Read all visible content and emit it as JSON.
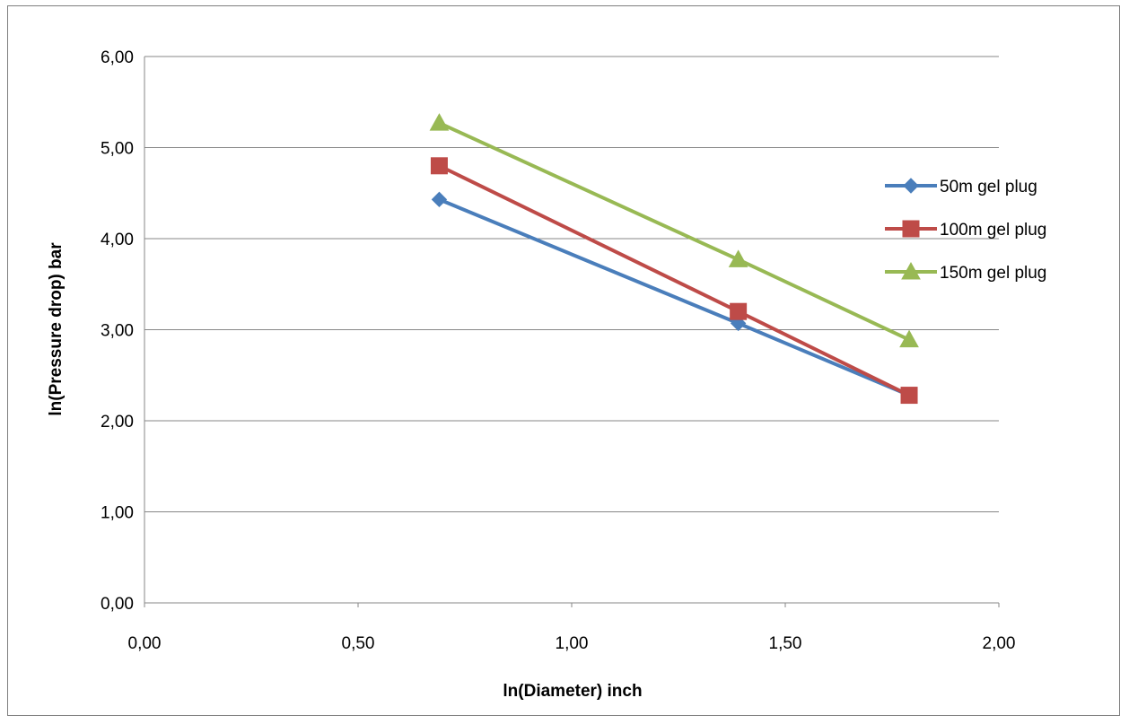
{
  "chart_data": {
    "type": "line",
    "title": "",
    "xlabel": "ln(Diameter) inch",
    "ylabel": "ln(Pressure drop)  bar",
    "xlim": [
      0,
      2
    ],
    "ylim": [
      0,
      6
    ],
    "xticks": [
      "0,00",
      "0,50",
      "1,00",
      "1,50",
      "2,00"
    ],
    "yticks": [
      "0,00",
      "1,00",
      "2,00",
      "3,00",
      "4,00",
      "5,00",
      "6,00"
    ],
    "grid": "horizontal",
    "legend_position": "right",
    "series": [
      {
        "name": "50m gel plug",
        "color": "#4a7ebb",
        "marker": "diamond",
        "x": [
          0.69,
          1.39,
          1.79
        ],
        "y": [
          4.43,
          3.07,
          2.28
        ]
      },
      {
        "name": "100m gel plug",
        "color": "#be4b48",
        "marker": "square",
        "x": [
          0.69,
          1.39,
          1.79
        ],
        "y": [
          4.8,
          3.2,
          2.28
        ]
      },
      {
        "name": "150m gel plug",
        "color": "#98b954",
        "marker": "triangle",
        "x": [
          0.69,
          1.39,
          1.79
        ],
        "y": [
          5.27,
          3.77,
          2.89
        ]
      }
    ]
  }
}
